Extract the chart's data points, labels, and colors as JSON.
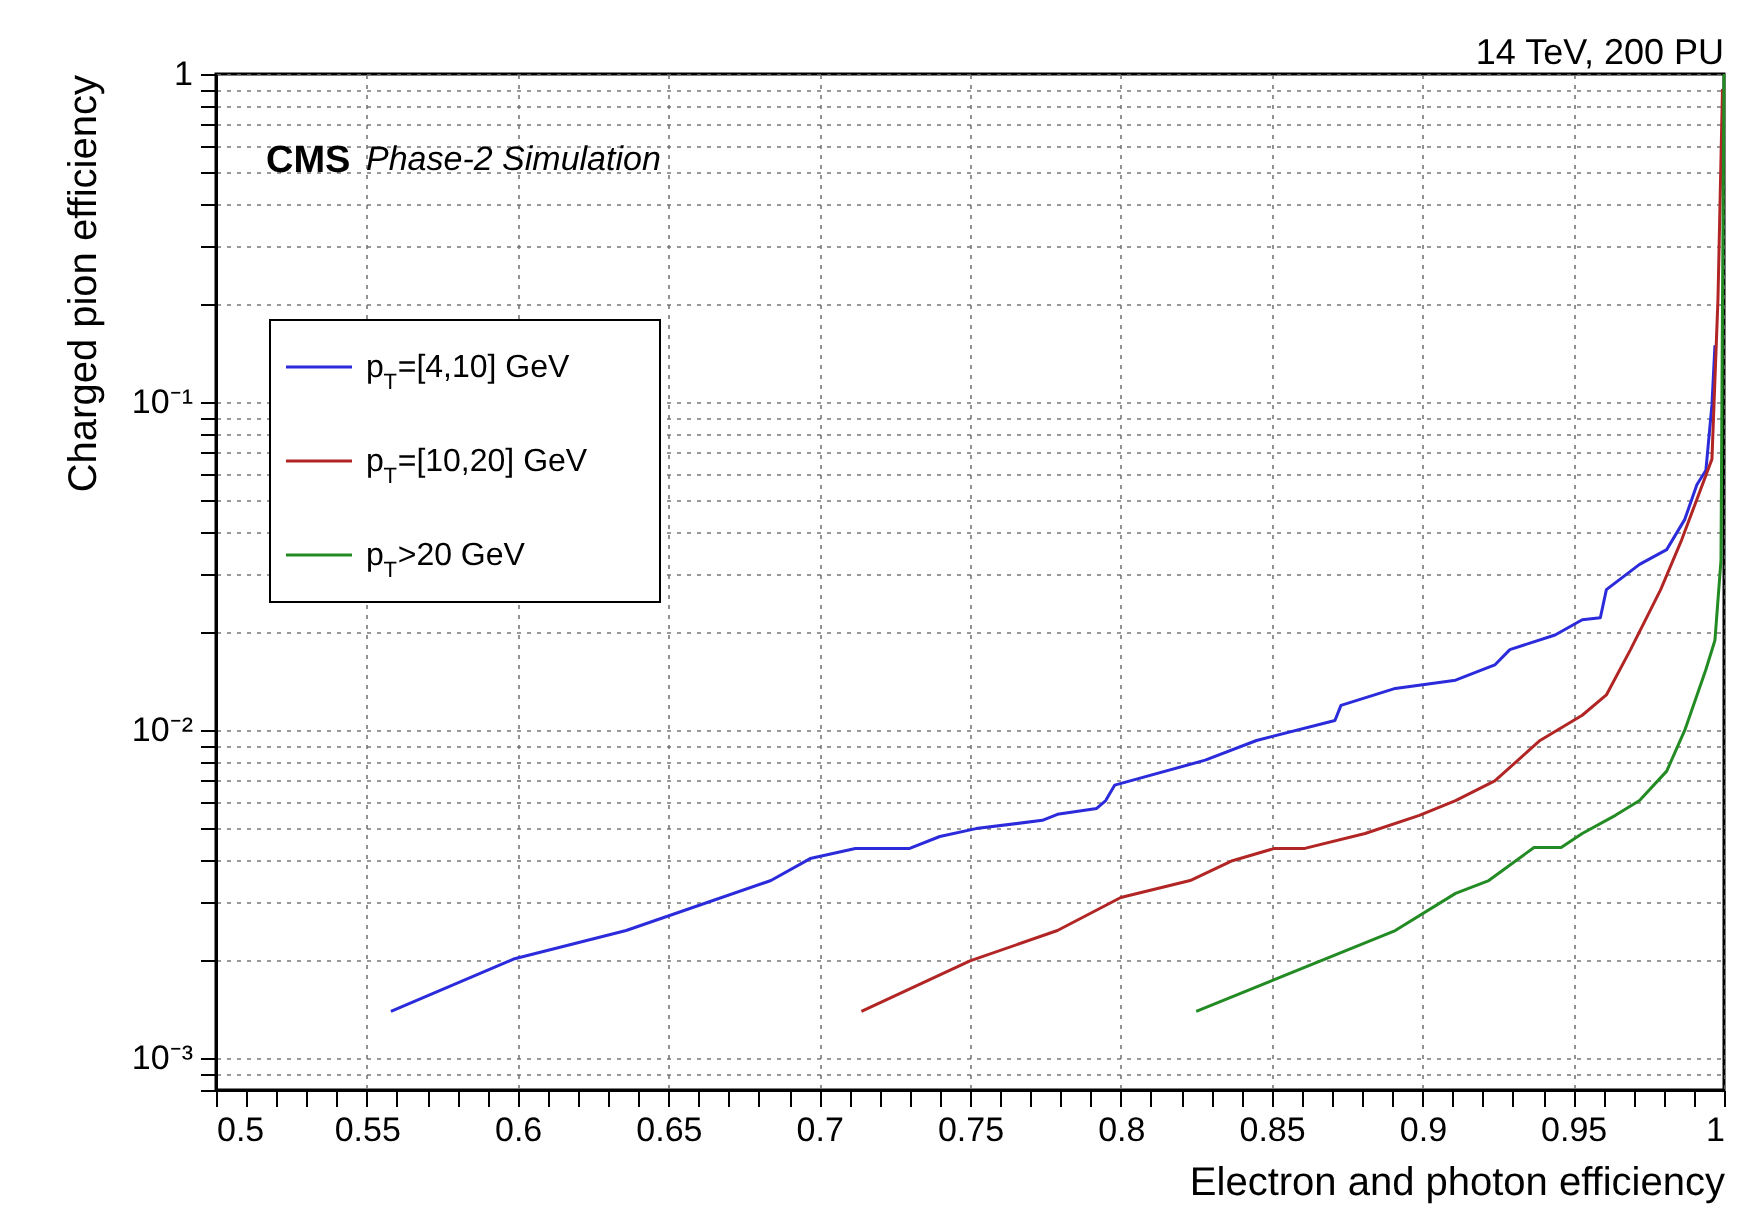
{
  "chart_data": {
    "type": "line",
    "xlabel": "Electron and photon efficiency",
    "ylabel": "Charged pion efficiency",
    "annotations": [
      "14 TeV, 200 PU",
      "CMS",
      "Phase-2 Simulation"
    ],
    "log": "y",
    "grid": true,
    "legend": "left",
    "line_style": "solid",
    "marker": "none",
    "xlim": [
      0.5,
      1.0
    ],
    "ylim": [
      0.0008,
      1
    ],
    "xticks": [
      0.5,
      {
        "value": 0.51,
        "label": null
      },
      {
        "value": 0.52,
        "label": null
      },
      {
        "value": 0.53,
        "label": null
      },
      {
        "value": 0.54,
        "label": null
      },
      0.55,
      {
        "value": 0.56,
        "label": null
      },
      {
        "value": 0.57,
        "label": null
      },
      {
        "value": 0.58,
        "label": null
      },
      {
        "value": 0.59,
        "label": null
      },
      0.6,
      {
        "value": 0.61,
        "label": null
      },
      {
        "value": 0.62,
        "label": null
      },
      {
        "value": 0.63,
        "label": null
      },
      {
        "value": 0.64,
        "label": null
      },
      0.65,
      {
        "value": 0.66,
        "label": null
      },
      {
        "value": 0.67,
        "label": null
      },
      {
        "value": 0.68,
        "label": null
      },
      {
        "value": 0.69,
        "label": null
      },
      0.7,
      {
        "value": 0.71,
        "label": null
      },
      {
        "value": 0.72,
        "label": null
      },
      {
        "value": 0.73,
        "label": null
      },
      {
        "value": 0.74,
        "label": null
      },
      0.75,
      {
        "value": 0.76,
        "label": null
      },
      {
        "value": 0.77,
        "label": null
      },
      {
        "value": 0.78,
        "label": null
      },
      {
        "value": 0.79,
        "label": null
      },
      0.8,
      {
        "value": 0.81,
        "label": null
      },
      {
        "value": 0.82,
        "label": null
      },
      {
        "value": 0.83,
        "label": null
      },
      {
        "value": 0.84,
        "label": null
      },
      0.85,
      {
        "value": 0.86,
        "label": null
      },
      {
        "value": 0.87,
        "label": null
      },
      {
        "value": 0.88,
        "label": null
      },
      {
        "value": 0.89,
        "label": null
      },
      0.9,
      {
        "value": 0.91,
        "label": null
      },
      {
        "value": 0.92,
        "label": null
      },
      {
        "value": 0.93,
        "label": null
      },
      {
        "value": 0.94,
        "label": null
      },
      0.95,
      {
        "value": 0.96,
        "label": null
      },
      {
        "value": 0.97,
        "label": null
      },
      {
        "value": 0.98,
        "label": null
      },
      {
        "value": 0.99,
        "label": null
      },
      1
    ],
    "yticks": [
      {
        "value": 0.0008,
        "label": null
      },
      {
        "value": 0.0009,
        "label": null
      },
      {
        "value": 0.001,
        "label": "10⁻³"
      },
      {
        "value": 0.002,
        "label": null
      },
      {
        "value": 0.003,
        "label": null
      },
      {
        "value": 0.004,
        "label": null
      },
      {
        "value": 0.005,
        "label": null
      },
      {
        "value": 0.006,
        "label": null
      },
      {
        "value": 0.007,
        "label": null
      },
      {
        "value": 0.008,
        "label": null
      },
      {
        "value": 0.009,
        "label": null
      },
      {
        "value": 0.01,
        "label": "10⁻²"
      },
      {
        "value": 0.02,
        "label": null
      },
      {
        "value": 0.03,
        "label": null
      },
      {
        "value": 0.04,
        "label": null
      },
      {
        "value": 0.05,
        "label": null
      },
      {
        "value": 0.06,
        "label": null
      },
      {
        "value": 0.07,
        "label": null
      },
      {
        "value": 0.08,
        "label": null
      },
      {
        "value": 0.09,
        "label": null
      },
      {
        "value": 0.1,
        "label": "10⁻¹"
      },
      {
        "value": 0.2,
        "label": null
      },
      {
        "value": 0.3,
        "label": null
      },
      {
        "value": 0.4,
        "label": null
      },
      {
        "value": 0.5,
        "label": null
      },
      {
        "value": 0.6,
        "label": null
      },
      {
        "value": 0.7,
        "label": null
      },
      {
        "value": 0.8,
        "label": null
      },
      {
        "value": 0.9,
        "label": null
      },
      1
    ],
    "series": [
      {
        "name": "p$_{T}$=[4,10] GeV",
        "color": "#2b2bdb",
        "x": [
          0.558,
          0.599,
          0.636,
          0.684,
          0.697,
          0.712,
          0.73,
          0.74,
          0.752,
          0.774,
          0.779,
          0.792,
          0.795,
          0.798,
          0.828,
          0.845,
          0.871,
          0.873,
          0.891,
          0.911,
          0.924,
          0.929,
          0.944,
          0.953,
          0.959,
          0.961,
          0.972,
          0.981,
          0.987,
          0.991,
          0.994,
          0.996,
          0.997
        ],
        "values": [
          0.00139,
          0.00201,
          0.00245,
          0.00348,
          0.00406,
          0.00436,
          0.00436,
          0.00474,
          0.00501,
          0.00531,
          0.00554,
          0.00577,
          0.0061,
          0.0068,
          0.0081,
          0.0093,
          0.0107,
          0.0119,
          0.0134,
          0.0142,
          0.0158,
          0.0176,
          0.0195,
          0.0217,
          0.022,
          0.0268,
          0.032,
          0.0355,
          0.0439,
          0.056,
          0.062,
          0.098,
          0.149
        ]
      },
      {
        "name": "p$_{T}$=[10,20] GeV",
        "color": "#b22525",
        "x": [
          0.714,
          0.75,
          0.779,
          0.8,
          0.823,
          0.837,
          0.851,
          0.861,
          0.881,
          0.899,
          0.911,
          0.924,
          0.939,
          0.953,
          0.961,
          0.969,
          0.979,
          0.986,
          0.991,
          0.996,
          0.998,
          0.9995
        ],
        "values": [
          0.00139,
          0.00198,
          0.00245,
          0.00309,
          0.00348,
          0.004,
          0.00436,
          0.00436,
          0.00484,
          0.0055,
          0.0061,
          0.007,
          0.0093,
          0.0111,
          0.0128,
          0.0176,
          0.0268,
          0.0381,
          0.0505,
          0.067,
          0.206,
          0.9
        ]
      },
      {
        "name": "p$_{T}$>20 GeV",
        "color": "#238b23",
        "x": [
          0.825,
          0.891,
          0.911,
          0.922,
          0.937,
          0.946,
          0.953,
          0.964,
          0.972,
          0.981,
          0.987,
          0.994,
          0.997,
          0.999,
          0.9995,
          1.0
        ],
        "values": [
          0.00139,
          0.00245,
          0.00318,
          0.00348,
          0.00439,
          0.00439,
          0.00484,
          0.0055,
          0.0061,
          0.0075,
          0.01,
          0.0153,
          0.0188,
          0.033,
          0.2,
          1.0
        ]
      }
    ]
  }
}
